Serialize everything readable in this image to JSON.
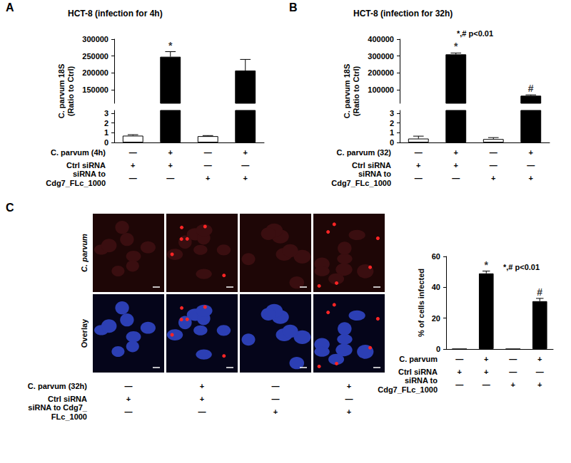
{
  "chart_data": [
    {
      "type": "bar",
      "panel": "A",
      "title": "HCT-8 (infection for 4h)",
      "y_label": [
        "C. parvum 18S",
        "(Ratio to Ctrl)"
      ],
      "categories": [
        null,
        null,
        null,
        null
      ],
      "values": [
        0.7,
        248000,
        0.65,
        207000
      ],
      "errors": [
        0.1,
        15000,
        0.06,
        33000
      ],
      "colors": [
        "#ffffff",
        "#000000",
        "#ffffff",
        "#000000"
      ],
      "segments": [
        {
          "ylim": [
            0,
            3.3
          ],
          "yticks": [
            0,
            1,
            2,
            3
          ]
        },
        {
          "ylim": [
            110000,
            300000
          ],
          "yticks": [
            150000,
            200000,
            250000,
            300000
          ]
        }
      ],
      "annotations": [
        null,
        "*",
        null,
        null
      ],
      "conditions": [
        {
          "label": "C. parvum (4h)",
          "marks": [
            "—",
            "+",
            "—",
            "+"
          ]
        },
        {
          "label": "Ctrl siRNA",
          "marks": [
            "+",
            "+",
            "—",
            "—"
          ]
        },
        {
          "label": "siRNA to\nCdg7_FLc_1000",
          "marks": [
            "—",
            "—",
            "+",
            "+"
          ]
        }
      ]
    },
    {
      "type": "bar",
      "panel": "B",
      "title": "HCT-8 (infection for 32h)",
      "y_label": [
        "C. parvum 18S",
        "(Ratio to Ctrl)"
      ],
      "note": "*,# p<0.01",
      "categories": [
        null,
        null,
        null,
        null
      ],
      "values": [
        0.4,
        310000,
        0.35,
        65000
      ],
      "errors": [
        0.25,
        8000,
        0.15,
        5000
      ],
      "colors": [
        "#ffffff",
        "#000000",
        "#ffffff",
        "#000000"
      ],
      "segments": [
        {
          "ylim": [
            0,
            3.3
          ],
          "yticks": [
            0,
            1,
            2,
            3
          ]
        },
        {
          "ylim": [
            20000,
            400000
          ],
          "yticks": [
            100000,
            200000,
            300000,
            400000
          ]
        }
      ],
      "annotations": [
        null,
        "*",
        null,
        "#"
      ],
      "conditions": [
        {
          "label": "C. parvum (32)",
          "marks": [
            "—",
            "+",
            "—",
            "+"
          ]
        },
        {
          "label": "Ctrl siRNA",
          "marks": [
            "+",
            "+",
            "—",
            "—"
          ]
        },
        {
          "label": "siRNA to\nCdg7_FLc_1000",
          "marks": [
            "—",
            "—",
            "+",
            "+"
          ]
        }
      ]
    },
    {
      "type": "bar",
      "panel": "C",
      "y_label": [
        "% of cells infected"
      ],
      "note": "*,# p<0.01",
      "categories": [
        null,
        null,
        null,
        null
      ],
      "values": [
        0,
        49,
        0,
        31
      ],
      "errors": [
        0,
        1.5,
        0,
        1.8
      ],
      "colors": [
        "#ffffff",
        "#000000",
        "#ffffff",
        "#000000"
      ],
      "ylim": [
        0,
        60
      ],
      "yticks": [
        0,
        20,
        40,
        60
      ],
      "annotations": [
        null,
        "*",
        null,
        "#"
      ],
      "conditions": [
        {
          "label": "C. parvum",
          "marks": [
            "—",
            "+",
            "—",
            "+"
          ]
        },
        {
          "label": "Ctrl siRNA",
          "marks": [
            "+",
            "+",
            "—",
            "—"
          ]
        },
        {
          "label": "siRNA to\nCdg7_FLc_1000",
          "marks": [
            "—",
            "—",
            "+",
            "+"
          ]
        }
      ]
    }
  ],
  "images": {
    "panel": "C",
    "rows": [
      "C. parvum",
      "Overlay"
    ],
    "conditions": [
      {
        "label": "C. parvum (32h)",
        "marks": [
          "—",
          "+",
          "—",
          "+"
        ]
      },
      {
        "label": "Ctrl siRNA",
        "marks": [
          "+",
          "+",
          "—",
          "—"
        ]
      },
      {
        "label": "siRNA to Cdg7_\nFLc_1000",
        "marks": [
          "—",
          "—",
          "+",
          "+"
        ]
      }
    ]
  }
}
